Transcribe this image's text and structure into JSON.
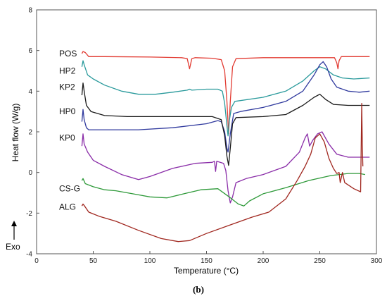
{
  "chart_data": {
    "type": "line",
    "xlabel": "Temperature (°C)",
    "ylabel": "Heat flow (W/g)",
    "xlim": [
      0,
      300
    ],
    "ylim": [
      -4,
      8
    ],
    "xticks": [
      0,
      50,
      100,
      150,
      200,
      250,
      300
    ],
    "yticks": [
      -4,
      -2,
      0,
      2,
      4,
      6,
      8
    ],
    "grid": false,
    "exo_label": "Exo",
    "panel_label": "(b)",
    "series": [
      {
        "name": "POS",
        "color": "#e23b32",
        "label_y": 5.85,
        "points": [
          [
            40,
            5.85
          ],
          [
            41,
            5.95
          ],
          [
            43,
            5.9
          ],
          [
            46,
            5.7
          ],
          [
            60,
            5.7
          ],
          [
            100,
            5.68
          ],
          [
            128,
            5.65
          ],
          [
            133,
            5.6
          ],
          [
            135,
            5.1
          ],
          [
            137,
            5.6
          ],
          [
            140,
            5.65
          ],
          [
            155,
            5.62
          ],
          [
            163,
            5.55
          ],
          [
            166,
            5.0
          ],
          [
            168,
            3.5
          ],
          [
            169.5,
            1.9
          ],
          [
            171,
            3.5
          ],
          [
            173,
            5.2
          ],
          [
            176,
            5.6
          ],
          [
            200,
            5.65
          ],
          [
            250,
            5.65
          ],
          [
            263,
            5.65
          ],
          [
            265,
            5.4
          ],
          [
            266,
            5.1
          ],
          [
            267,
            5.5
          ],
          [
            269,
            5.7
          ],
          [
            290,
            5.7
          ],
          [
            294,
            5.7
          ]
        ]
      },
      {
        "name": "HP2",
        "color": "#2a9a9c",
        "label_y": 5.0,
        "points": [
          [
            40,
            5.2
          ],
          [
            41,
            5.5
          ],
          [
            42,
            5.3
          ],
          [
            45,
            4.8
          ],
          [
            50,
            4.6
          ],
          [
            60,
            4.3
          ],
          [
            75,
            4.0
          ],
          [
            90,
            3.85
          ],
          [
            105,
            3.85
          ],
          [
            120,
            3.95
          ],
          [
            133,
            4.05
          ],
          [
            135,
            4.1
          ],
          [
            137,
            4.05
          ],
          [
            150,
            4.1
          ],
          [
            160,
            4.1
          ],
          [
            164,
            4.0
          ],
          [
            166,
            3.4
          ],
          [
            168,
            2.3
          ],
          [
            169,
            1.8
          ],
          [
            170,
            2.5
          ],
          [
            172,
            3.2
          ],
          [
            175,
            3.5
          ],
          [
            200,
            3.7
          ],
          [
            220,
            4.0
          ],
          [
            235,
            4.5
          ],
          [
            245,
            5.0
          ],
          [
            250,
            5.2
          ],
          [
            255,
            5.1
          ],
          [
            262,
            4.8
          ],
          [
            270,
            4.65
          ],
          [
            280,
            4.6
          ],
          [
            294,
            4.65
          ]
        ]
      },
      {
        "name": "KP2",
        "color": "#303a9e",
        "label_y": 4.2,
        "points": [
          [
            40,
            2.5
          ],
          [
            41,
            3.1
          ],
          [
            42,
            2.6
          ],
          [
            44,
            2.2
          ],
          [
            46,
            2.1
          ],
          [
            60,
            2.1
          ],
          [
            90,
            2.1
          ],
          [
            120,
            2.2
          ],
          [
            150,
            2.4
          ],
          [
            160,
            2.55
          ],
          [
            163,
            2.5
          ],
          [
            166,
            2.0
          ],
          [
            168,
            1.2
          ],
          [
            169,
            1.0
          ],
          [
            171,
            1.9
          ],
          [
            174,
            2.9
          ],
          [
            180,
            3.0
          ],
          [
            200,
            3.2
          ],
          [
            220,
            3.5
          ],
          [
            235,
            4.0
          ],
          [
            245,
            4.8
          ],
          [
            250,
            5.3
          ],
          [
            253,
            5.45
          ],
          [
            256,
            5.2
          ],
          [
            260,
            4.6
          ],
          [
            265,
            4.2
          ],
          [
            275,
            4.0
          ],
          [
            285,
            3.95
          ],
          [
            294,
            4.0
          ]
        ]
      },
      {
        "name": "HP0",
        "color": "#1a1a1a",
        "label_y": 3.0,
        "points": [
          [
            40,
            3.8
          ],
          [
            41,
            4.4
          ],
          [
            42,
            4.0
          ],
          [
            44,
            3.3
          ],
          [
            48,
            3.0
          ],
          [
            60,
            2.8
          ],
          [
            80,
            2.75
          ],
          [
            120,
            2.75
          ],
          [
            155,
            2.75
          ],
          [
            163,
            2.6
          ],
          [
            166,
            1.8
          ],
          [
            168,
            0.8
          ],
          [
            169.5,
            0.35
          ],
          [
            171,
            1.2
          ],
          [
            173,
            2.4
          ],
          [
            176,
            2.7
          ],
          [
            200,
            2.75
          ],
          [
            220,
            2.85
          ],
          [
            235,
            3.3
          ],
          [
            245,
            3.7
          ],
          [
            250,
            3.85
          ],
          [
            255,
            3.6
          ],
          [
            262,
            3.35
          ],
          [
            275,
            3.3
          ],
          [
            294,
            3.3
          ]
        ]
      },
      {
        "name": "KP0",
        "color": "#8a2da8",
        "label_y": 1.7,
        "points": [
          [
            40,
            1.3
          ],
          [
            41,
            1.9
          ],
          [
            42,
            1.4
          ],
          [
            45,
            1.0
          ],
          [
            50,
            0.6
          ],
          [
            60,
            0.3
          ],
          [
            75,
            -0.1
          ],
          [
            90,
            -0.35
          ],
          [
            100,
            -0.2
          ],
          [
            120,
            0.2
          ],
          [
            140,
            0.45
          ],
          [
            155,
            0.5
          ],
          [
            157,
            0.55
          ],
          [
            158,
            0.05
          ],
          [
            159,
            0.55
          ],
          [
            165,
            0.45
          ],
          [
            167,
            0.1
          ],
          [
            169,
            -0.9
          ],
          [
            171,
            -1.5
          ],
          [
            173,
            -1.2
          ],
          [
            176,
            -0.5
          ],
          [
            185,
            -0.3
          ],
          [
            200,
            -0.1
          ],
          [
            220,
            0.3
          ],
          [
            232,
            1.0
          ],
          [
            237,
            1.7
          ],
          [
            239,
            1.9
          ],
          [
            241,
            1.3
          ],
          [
            244,
            1.6
          ],
          [
            248,
            1.9
          ],
          [
            252,
            2.0
          ],
          [
            258,
            1.4
          ],
          [
            265,
            0.9
          ],
          [
            275,
            0.75
          ],
          [
            294,
            0.75
          ]
        ]
      },
      {
        "name": "CS-G",
        "color": "#2f9a3a",
        "label_y": -0.8,
        "points": [
          [
            40,
            -0.4
          ],
          [
            41,
            -0.3
          ],
          [
            43,
            -0.55
          ],
          [
            50,
            -0.7
          ],
          [
            60,
            -0.85
          ],
          [
            70,
            -0.9
          ],
          [
            90,
            -1.1
          ],
          [
            100,
            -1.2
          ],
          [
            115,
            -1.25
          ],
          [
            130,
            -1.05
          ],
          [
            145,
            -0.85
          ],
          [
            160,
            -0.8
          ],
          [
            170,
            -1.2
          ],
          [
            178,
            -1.55
          ],
          [
            183,
            -1.65
          ],
          [
            188,
            -1.4
          ],
          [
            200,
            -1.05
          ],
          [
            220,
            -0.75
          ],
          [
            240,
            -0.4
          ],
          [
            260,
            -0.15
          ],
          [
            275,
            -0.05
          ],
          [
            285,
            -0.05
          ],
          [
            290,
            -0.1
          ]
        ]
      },
      {
        "name": "ALG",
        "color": "#a0271f",
        "label_y": -1.7,
        "points": [
          [
            40,
            -1.65
          ],
          [
            41,
            -1.55
          ],
          [
            43,
            -1.7
          ],
          [
            46,
            -1.95
          ],
          [
            55,
            -2.15
          ],
          [
            70,
            -2.4
          ],
          [
            90,
            -2.85
          ],
          [
            110,
            -3.25
          ],
          [
            125,
            -3.4
          ],
          [
            135,
            -3.35
          ],
          [
            150,
            -3.0
          ],
          [
            170,
            -2.6
          ],
          [
            190,
            -2.2
          ],
          [
            205,
            -1.95
          ],
          [
            220,
            -1.3
          ],
          [
            230,
            -0.4
          ],
          [
            237,
            0.3
          ],
          [
            242,
            0.9
          ],
          [
            246,
            1.7
          ],
          [
            250,
            1.9
          ],
          [
            254,
            1.5
          ],
          [
            258,
            0.7
          ],
          [
            262,
            0.2
          ],
          [
            265,
            -0.05
          ],
          [
            267,
            0.0
          ],
          [
            268,
            -0.5
          ],
          [
            270,
            0.0
          ],
          [
            272,
            -0.5
          ],
          [
            280,
            -0.8
          ],
          [
            286,
            -0.95
          ],
          [
            287,
            3.4
          ],
          [
            287.5,
            1.4
          ],
          [
            288,
            0.3
          ]
        ]
      }
    ]
  }
}
